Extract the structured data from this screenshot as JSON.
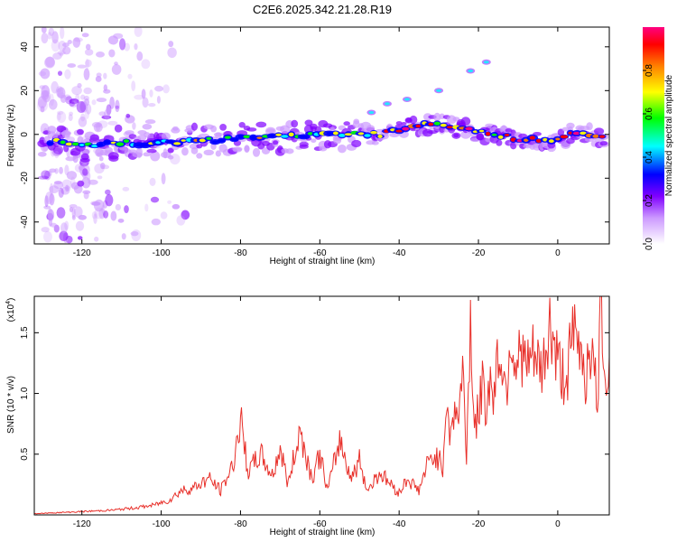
{
  "page_title": "C2E6.2025.342.21.28.R19",
  "chart_data": [
    {
      "type": "heatmap",
      "title": "C2E6.2025.342.21.28.R19",
      "xlabel": "Height of straight line (km)",
      "ylabel": "Frequency (Hz)",
      "xlim": [
        -132,
        13
      ],
      "ylim": [
        -50,
        49
      ],
      "x_ticks": [
        -120,
        -100,
        -80,
        -60,
        -40,
        -20,
        0
      ],
      "x_tick_labels": [
        "-120",
        "-100",
        "-80",
        "-60",
        "-40",
        "-20",
        "0"
      ],
      "y_ticks": [
        -40,
        -20,
        0,
        20,
        40
      ],
      "y_tick_labels": [
        "-40",
        "-20",
        "0",
        "20",
        "40"
      ],
      "colorbar": {
        "label": "Normalized spectral amplitude",
        "range": [
          0,
          1
        ],
        "ticks": [
          0.0,
          0.2,
          0.4,
          0.6,
          0.8
        ],
        "tick_labels": [
          "0.0",
          "0.2",
          "0.4",
          "0.6",
          "0.8"
        ],
        "colors": [
          "#ffffff",
          "#cc99ff",
          "#8000ff",
          "#0000ff",
          "#00ffff",
          "#00ff00",
          "#ffff00",
          "#ff8000",
          "#ff0000",
          "#ff0080"
        ]
      },
      "ridge": [
        {
          "x": -128,
          "f": -3
        },
        {
          "x": -120,
          "f": -5
        },
        {
          "x": -110,
          "f": -4
        },
        {
          "x": -100,
          "f": -4
        },
        {
          "x": -90,
          "f": -3
        },
        {
          "x": -80,
          "f": -2
        },
        {
          "x": -70,
          "f": -1
        },
        {
          "x": -60,
          "f": 0
        },
        {
          "x": -50,
          "f": 0
        },
        {
          "x": -45,
          "f": 0
        },
        {
          "x": -40,
          "f": 2
        },
        {
          "x": -35,
          "f": 4
        },
        {
          "x": -30,
          "f": 5
        },
        {
          "x": -25,
          "f": 3
        },
        {
          "x": -20,
          "f": 1
        },
        {
          "x": -15,
          "f": 0
        },
        {
          "x": -10,
          "f": -2
        },
        {
          "x": -5,
          "f": -2
        },
        {
          "x": 0,
          "f": -3
        },
        {
          "x": 3,
          "f": 0
        },
        {
          "x": 8,
          "f": 0
        },
        {
          "x": 12,
          "f": -2
        }
      ],
      "side_features": [
        {
          "x": -47,
          "f": 10
        },
        {
          "x": -43,
          "f": 14
        },
        {
          "x": -38,
          "f": 16
        },
        {
          "x": -30,
          "f": 20
        },
        {
          "x": -22,
          "f": 29
        },
        {
          "x": -18,
          "f": 33
        }
      ]
    },
    {
      "type": "line",
      "xlabel": "Height of straight line (km)",
      "ylabel": "SNR (10 * v/v)",
      "y_multiplier": "(x10",
      "y_multiplier_exp": "4",
      "y_multiplier_close": ")",
      "xlim": [
        -132,
        13
      ],
      "ylim": [
        0,
        1.8
      ],
      "x_ticks": [
        -120,
        -100,
        -80,
        -60,
        -40,
        -20,
        0
      ],
      "x_tick_labels": [
        "-120",
        "-100",
        "-80",
        "-60",
        "-40",
        "-20",
        "0"
      ],
      "y_ticks": [
        0.5,
        1.0,
        1.5
      ],
      "y_tick_labels": [
        "0.5",
        "1.0",
        "1.5"
      ],
      "series": [
        {
          "name": "SNR",
          "color": "#e8302a",
          "x": [
            -132,
            -125,
            -118,
            -112,
            -106,
            -102,
            -98,
            -95,
            -92,
            -88,
            -85,
            -82,
            -80,
            -78,
            -75,
            -72,
            -70,
            -68,
            -65,
            -62,
            -60,
            -58,
            -55,
            -52,
            -50,
            -48,
            -45,
            -42,
            -40,
            -38,
            -35,
            -33,
            -31,
            -29,
            -28,
            -27,
            -26,
            -25,
            -24,
            -23,
            -22,
            -21,
            -20,
            -19,
            -18,
            -17,
            -16,
            -15,
            -14,
            -13,
            -12,
            -11,
            -10,
            -9,
            -8,
            -6,
            -4,
            -2,
            -1,
            0,
            2,
            4,
            5,
            6,
            7,
            8,
            9,
            10,
            11,
            12,
            13
          ],
          "values": [
            0.01,
            0.02,
            0.03,
            0.04,
            0.06,
            0.08,
            0.12,
            0.2,
            0.22,
            0.3,
            0.2,
            0.4,
            0.78,
            0.35,
            0.5,
            0.32,
            0.55,
            0.25,
            0.7,
            0.3,
            0.5,
            0.2,
            0.62,
            0.3,
            0.45,
            0.2,
            0.35,
            0.25,
            0.18,
            0.3,
            0.2,
            0.4,
            0.5,
            0.4,
            1.0,
            0.6,
            0.9,
            0.8,
            1.2,
            0.5,
            1.6,
            0.7,
            0.85,
            1.05,
            0.9,
            1.1,
            1.0,
            1.35,
            1.25,
            1.0,
            1.5,
            1.3,
            1.25,
            1.35,
            1.2,
            1.3,
            1.15,
            1.55,
            1.4,
            1.25,
            1.1,
            1.5,
            1.35,
            1.4,
            1.1,
            1.45,
            1.2,
            0.95,
            1.75,
            1.15,
            1.3
          ]
        }
      ]
    }
  ]
}
